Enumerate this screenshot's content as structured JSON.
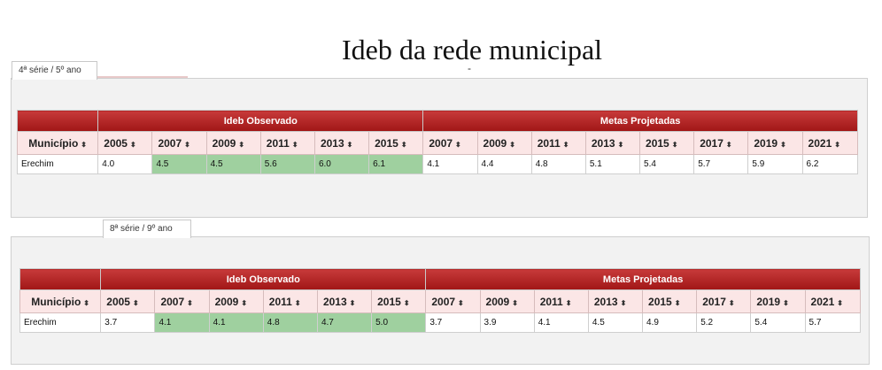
{
  "page": {
    "title": "Ideb da rede municipal",
    "dash": "-"
  },
  "tabs": [
    {
      "label": "4ª série / 5º ano"
    },
    {
      "label": "8ª série / 9º ano"
    }
  ],
  "tables": [
    {
      "group_observed": "Ideb Observado",
      "group_goals": "Metas Projetadas",
      "headers": [
        "Município",
        "2005",
        "2007",
        "2009",
        "2011",
        "2013",
        "2015",
        "2007",
        "2009",
        "2011",
        "2013",
        "2015",
        "2017",
        "2019",
        "2021"
      ],
      "row": [
        "Erechim",
        "4.0",
        "4.5",
        "4.5",
        "5.6",
        "6.0",
        "6.1",
        "4.1",
        "4.4",
        "4.8",
        "5.1",
        "5.4",
        "5.7",
        "5.9",
        "6.2"
      ]
    },
    {
      "group_observed": "Ideb Observado",
      "group_goals": "Metas Projetadas",
      "headers": [
        "Município",
        "2005",
        "2007",
        "2009",
        "2011",
        "2013",
        "2015",
        "2007",
        "2009",
        "2011",
        "2013",
        "2015",
        "2017",
        "2019",
        "2021"
      ],
      "row": [
        "Erechim",
        "3.7",
        "4.1",
        "4.1",
        "4.8",
        "4.7",
        "5.0",
        "3.7",
        "3.9",
        "4.1",
        "4.5",
        "4.9",
        "5.2",
        "5.4",
        "5.7"
      ]
    }
  ],
  "highlight_color": "#9fd09f",
  "header_color": "#b52222",
  "sort_icon": "sort-arrows-icon"
}
